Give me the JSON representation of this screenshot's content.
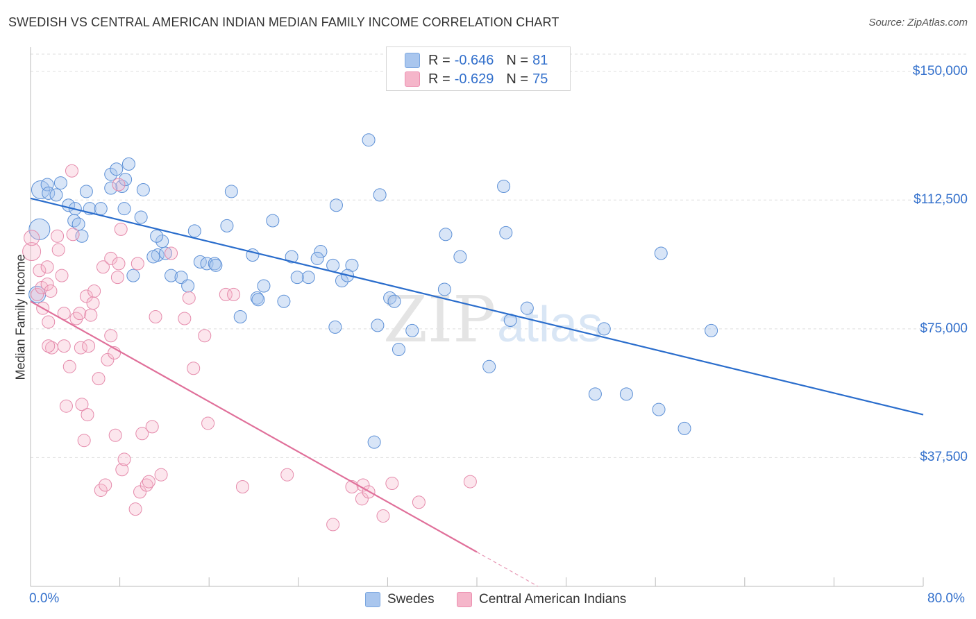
{
  "title": "SWEDISH VS CENTRAL AMERICAN INDIAN MEDIAN FAMILY INCOME CORRELATION CHART",
  "source": "Source: ZipAtlas.com",
  "colors": {
    "blue": "#3370cc",
    "blue_fill": "#a9c6ee",
    "pink": "#e0709a",
    "pink_fill": "#f5b6ca",
    "grid": "#dddddd"
  },
  "legend": {
    "r_label": "R =",
    "n_label": "N =",
    "rows": [
      {
        "r": "-0.646",
        "n": "81"
      },
      {
        "r": "-0.629",
        "n": "75"
      }
    ]
  },
  "watermark": {
    "zip": "ZIP",
    "atlas": "atlas"
  },
  "chart_data": {
    "type": "scatter",
    "title": "SWEDISH VS CENTRAL AMERICAN INDIAN MEDIAN FAMILY INCOME CORRELATION CHART",
    "xlabel": "",
    "ylabel": "Median Family Income",
    "xlim": [
      0,
      80
    ],
    "ylim": [
      0,
      155000
    ],
    "x_tick_labels": [
      "0.0%",
      "80.0%"
    ],
    "y_ticks": [
      37500,
      75000,
      112500,
      150000
    ],
    "y_tick_labels": [
      "$37,500",
      "$75,000",
      "$112,500",
      "$150,000"
    ],
    "legend_position": "bottom",
    "series": [
      {
        "name": "Swedes",
        "color": "#3370cc",
        "trend": {
          "x": [
            0,
            80
          ],
          "y": [
            113000,
            50000
          ]
        },
        "points": [
          [
            0.9,
            115500
          ],
          [
            1.5,
            117000
          ],
          [
            1.6,
            114500
          ],
          [
            2.3,
            114000
          ],
          [
            2.7,
            117500
          ],
          [
            3.4,
            111000
          ],
          [
            0.8,
            104000
          ],
          [
            0.6,
            85000
          ],
          [
            3.9,
            106500
          ],
          [
            4.3,
            105500
          ],
          [
            5.3,
            110000
          ],
          [
            4.0,
            110000
          ],
          [
            6.3,
            110000
          ],
          [
            5.0,
            115000
          ],
          [
            4.6,
            102000
          ],
          [
            7.2,
            120000
          ],
          [
            7.7,
            121500
          ],
          [
            8.2,
            116500
          ],
          [
            8.8,
            123000
          ],
          [
            8.5,
            118500
          ],
          [
            8.4,
            110000
          ],
          [
            7.2,
            116000
          ],
          [
            10.1,
            115500
          ],
          [
            9.9,
            107500
          ],
          [
            11.4,
            96500
          ],
          [
            11.0,
            96000
          ],
          [
            12.1,
            97000
          ],
          [
            12.6,
            90500
          ],
          [
            13.5,
            90000
          ],
          [
            14.1,
            87500
          ],
          [
            15.2,
            94500
          ],
          [
            15.8,
            94000
          ],
          [
            14.7,
            103500
          ],
          [
            16.5,
            94000
          ],
          [
            16.6,
            93500
          ],
          [
            18.0,
            115000
          ],
          [
            17.6,
            105000
          ],
          [
            18.8,
            78500
          ],
          [
            19.9,
            96500
          ],
          [
            20.3,
            84000
          ],
          [
            20.9,
            87500
          ],
          [
            20.4,
            83500
          ],
          [
            21.7,
            106500
          ],
          [
            22.7,
            83000
          ],
          [
            23.4,
            96000
          ],
          [
            24.9,
            90000
          ],
          [
            23.9,
            90000
          ],
          [
            26.0,
            97500
          ],
          [
            25.7,
            95500
          ],
          [
            27.1,
            93500
          ],
          [
            27.9,
            89000
          ],
          [
            28.8,
            93500
          ],
          [
            27.4,
            111000
          ],
          [
            27.3,
            75500
          ],
          [
            28.4,
            90500
          ],
          [
            30.3,
            130000
          ],
          [
            31.1,
            76000
          ],
          [
            31.3,
            114000
          ],
          [
            32.2,
            84000
          ],
          [
            32.6,
            83000
          ],
          [
            34.2,
            74500
          ],
          [
            33.0,
            69000
          ],
          [
            11.8,
            100500
          ],
          [
            11.3,
            102000
          ],
          [
            37.1,
            86500
          ],
          [
            37.2,
            102500
          ],
          [
            38.5,
            96000
          ],
          [
            41.1,
            64000
          ],
          [
            42.4,
            116500
          ],
          [
            42.6,
            103000
          ],
          [
            43.0,
            77500
          ],
          [
            44.5,
            81000
          ],
          [
            50.6,
            56000
          ],
          [
            51.4,
            75000
          ],
          [
            53.4,
            56000
          ],
          [
            56.3,
            51500
          ],
          [
            56.5,
            97000
          ],
          [
            58.6,
            46000
          ],
          [
            61.0,
            74500
          ],
          [
            30.8,
            42000
          ],
          [
            9.2,
            90500
          ]
        ]
      },
      {
        "name": "Central American Indians",
        "color": "#e0709a",
        "trend": {
          "x": [
            0,
            40
          ],
          "y": [
            83000,
            10000
          ]
        },
        "points": [
          [
            0.1,
            97500
          ],
          [
            0.1,
            101500
          ],
          [
            0.8,
            92000
          ],
          [
            0.6,
            85000
          ],
          [
            1.0,
            87000
          ],
          [
            1.5,
            88000
          ],
          [
            1.5,
            93000
          ],
          [
            1.1,
            81000
          ],
          [
            1.6,
            77000
          ],
          [
            1.8,
            86000
          ],
          [
            1.9,
            69500
          ],
          [
            1.6,
            70000
          ],
          [
            2.4,
            102000
          ],
          [
            2.5,
            98000
          ],
          [
            2.8,
            90500
          ],
          [
            3.0,
            79500
          ],
          [
            3.0,
            70000
          ],
          [
            3.2,
            52500
          ],
          [
            3.5,
            64000
          ],
          [
            3.7,
            121000
          ],
          [
            3.8,
            102500
          ],
          [
            4.1,
            78000
          ],
          [
            4.5,
            69500
          ],
          [
            4.6,
            53000
          ],
          [
            4.4,
            79500
          ],
          [
            4.8,
            42500
          ],
          [
            5.0,
            84500
          ],
          [
            5.1,
            50000
          ],
          [
            5.2,
            70000
          ],
          [
            5.4,
            79000
          ],
          [
            5.6,
            82500
          ],
          [
            5.7,
            86000
          ],
          [
            6.1,
            60500
          ],
          [
            6.3,
            28000
          ],
          [
            6.5,
            93000
          ],
          [
            6.7,
            29500
          ],
          [
            6.9,
            66000
          ],
          [
            7.2,
            95500
          ],
          [
            7.2,
            73000
          ],
          [
            7.5,
            68000
          ],
          [
            7.6,
            44000
          ],
          [
            7.8,
            90000
          ],
          [
            7.9,
            94000
          ],
          [
            7.9,
            117000
          ],
          [
            8.1,
            104000
          ],
          [
            8.2,
            34000
          ],
          [
            8.4,
            37000
          ],
          [
            9.4,
            22500
          ],
          [
            9.6,
            94000
          ],
          [
            9.8,
            27500
          ],
          [
            10.0,
            44500
          ],
          [
            10.4,
            29500
          ],
          [
            10.6,
            30500
          ],
          [
            10.9,
            46500
          ],
          [
            11.2,
            78500
          ],
          [
            11.7,
            32500
          ],
          [
            12.6,
            97000
          ],
          [
            13.8,
            78000
          ],
          [
            14.6,
            63500
          ],
          [
            15.6,
            73000
          ],
          [
            15.9,
            47500
          ],
          [
            17.5,
            85000
          ],
          [
            18.2,
            85000
          ],
          [
            19.0,
            29000
          ],
          [
            23.0,
            32500
          ],
          [
            27.1,
            18000
          ],
          [
            28.8,
            29000
          ],
          [
            29.7,
            25500
          ],
          [
            29.8,
            29500
          ],
          [
            30.3,
            27500
          ],
          [
            31.6,
            20500
          ],
          [
            32.4,
            30000
          ],
          [
            34.8,
            24500
          ],
          [
            39.4,
            30500
          ],
          [
            14.2,
            84000
          ]
        ]
      }
    ]
  },
  "bottom_legend": [
    {
      "label": "Swedes"
    },
    {
      "label": "Central American Indians"
    }
  ]
}
